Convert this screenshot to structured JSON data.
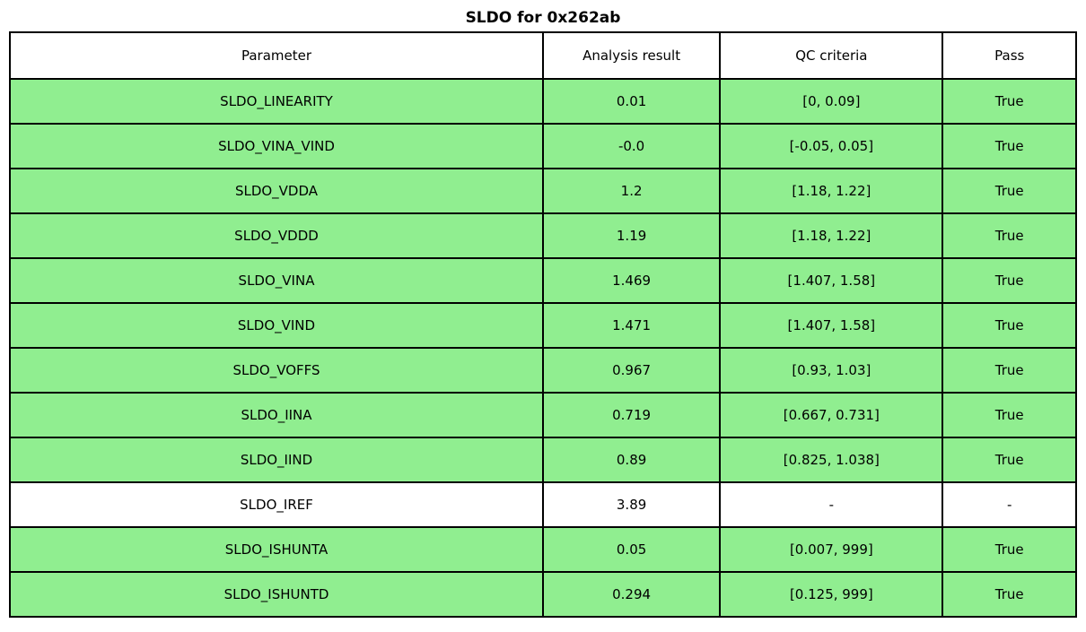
{
  "title": "SLDO for 0x262ab",
  "colors": {
    "pass_row": "#90EE90",
    "neutral_row": "#FFFFFF",
    "border": "#000000",
    "text": "#000000"
  },
  "chart_data": {
    "type": "table",
    "title": "SLDO for 0x262ab",
    "columns": [
      "Parameter",
      "Analysis result",
      "QC criteria",
      "Pass"
    ],
    "rows": [
      {
        "parameter": "SLDO_LINEARITY",
        "result": "0.01",
        "criteria": "[0, 0.09]",
        "pass": "True",
        "highlighted": true
      },
      {
        "parameter": "SLDO_VINA_VIND",
        "result": "-0.0",
        "criteria": "[-0.05, 0.05]",
        "pass": "True",
        "highlighted": true
      },
      {
        "parameter": "SLDO_VDDA",
        "result": "1.2",
        "criteria": "[1.18, 1.22]",
        "pass": "True",
        "highlighted": true
      },
      {
        "parameter": "SLDO_VDDD",
        "result": "1.19",
        "criteria": "[1.18, 1.22]",
        "pass": "True",
        "highlighted": true
      },
      {
        "parameter": "SLDO_VINA",
        "result": "1.469",
        "criteria": "[1.407, 1.58]",
        "pass": "True",
        "highlighted": true
      },
      {
        "parameter": "SLDO_VIND",
        "result": "1.471",
        "criteria": "[1.407, 1.58]",
        "pass": "True",
        "highlighted": true
      },
      {
        "parameter": "SLDO_VOFFS",
        "result": "0.967",
        "criteria": "[0.93, 1.03]",
        "pass": "True",
        "highlighted": true
      },
      {
        "parameter": "SLDO_IINA",
        "result": "0.719",
        "criteria": "[0.667, 0.731]",
        "pass": "True",
        "highlighted": true
      },
      {
        "parameter": "SLDO_IIND",
        "result": "0.89",
        "criteria": "[0.825, 1.038]",
        "pass": "True",
        "highlighted": true
      },
      {
        "parameter": "SLDO_IREF",
        "result": "3.89",
        "criteria": "-",
        "pass": "-",
        "highlighted": false
      },
      {
        "parameter": "SLDO_ISHUNTA",
        "result": "0.05",
        "criteria": "[0.007, 999]",
        "pass": "True",
        "highlighted": true
      },
      {
        "parameter": "SLDO_ISHUNTD",
        "result": "0.294",
        "criteria": "[0.125, 999]",
        "pass": "True",
        "highlighted": true
      }
    ]
  }
}
